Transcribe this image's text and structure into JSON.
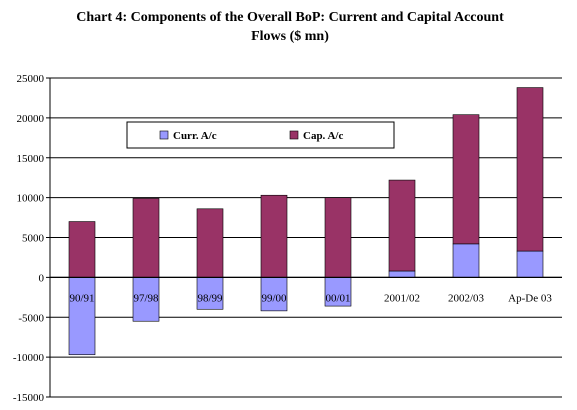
{
  "title_line1": "Chart 4: Components of the Overall BoP: Current and Capital Account",
  "title_line2": "Flows ($ mn)",
  "chart_data": {
    "type": "bar",
    "stacked": true,
    "title": "Chart 4: Components of the Overall BoP: Current and Capital Account Flows ($ mn)",
    "categories": [
      "90/91",
      "97/98",
      "98/99",
      "99/00",
      "00/01",
      "2001/02",
      "2002/03",
      "Ap-De 03"
    ],
    "series": [
      {
        "name": "Curr. A/c",
        "color": "#9999ff",
        "values": [
          -9700,
          -5500,
          -4000,
          -4200,
          -3600,
          800,
          4200,
          3300
        ]
      },
      {
        "name": "Cap. A/c",
        "color": "#993366",
        "values": [
          7000,
          9900,
          8600,
          10300,
          10000,
          11400,
          16200,
          20500
        ]
      }
    ],
    "ylim": [
      -15000,
      25000
    ],
    "yticks": [
      -15000,
      -10000,
      -5000,
      0,
      5000,
      10000,
      15000,
      20000,
      25000
    ],
    "grid": true,
    "legend": "top-left"
  }
}
